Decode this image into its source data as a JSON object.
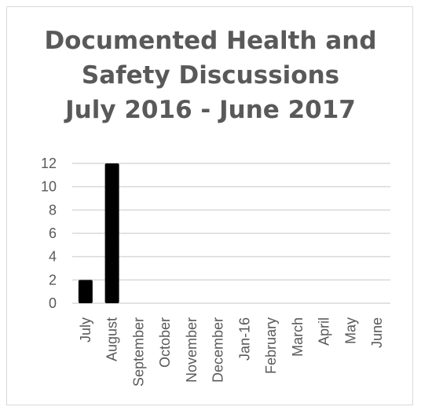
{
  "chart_data": {
    "type": "bar",
    "title_lines": [
      "Documented Health and",
      "Safety Discussions",
      "July 2016 - June 2017"
    ],
    "categories": [
      "July",
      "August",
      "September",
      "October",
      "November",
      "December",
      "Jan-16",
      "February",
      "March",
      "April",
      "May",
      "June"
    ],
    "values": [
      2,
      12,
      null,
      null,
      null,
      null,
      null,
      null,
      null,
      null,
      null,
      null
    ],
    "y_ticks": [
      0,
      2,
      4,
      6,
      8,
      10,
      12
    ],
    "ylim": [
      0,
      12
    ],
    "grid": true,
    "legend": "none",
    "bar_color": "#000000",
    "grid_color": "#d9d9d9",
    "text_color": "#595959"
  }
}
